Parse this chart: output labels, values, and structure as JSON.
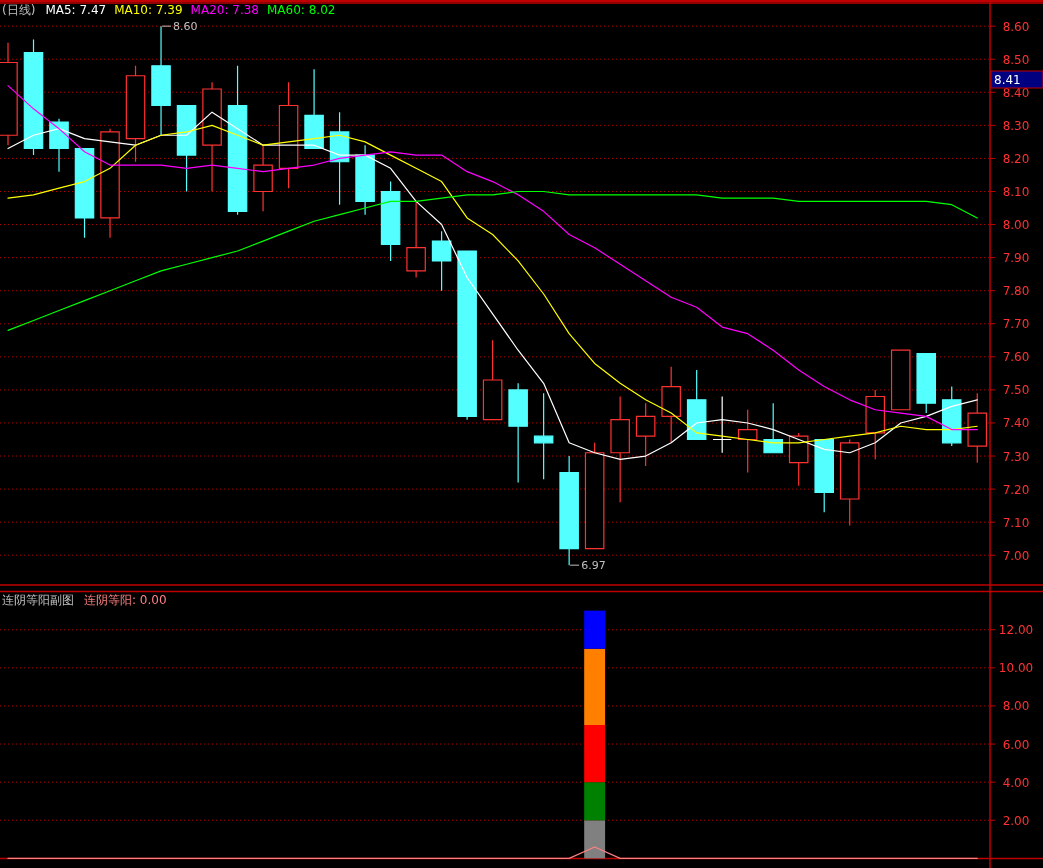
{
  "chart_data": [
    {
      "type": "candlestick",
      "title": "(日线)",
      "categories": [
        null,
        null,
        null,
        null,
        null,
        null,
        null,
        null,
        null,
        null,
        null,
        null,
        null,
        null,
        null,
        null,
        null,
        null,
        null,
        null,
        null,
        null,
        null,
        null,
        null,
        null,
        null,
        null,
        null,
        null,
        null,
        null,
        null,
        null,
        null,
        null,
        null,
        null,
        null
      ],
      "ohlc": [
        [
          8.27,
          8.55,
          8.24,
          8.49
        ],
        [
          8.52,
          8.56,
          8.21,
          8.23
        ],
        [
          8.31,
          8.32,
          8.16,
          8.23
        ],
        [
          8.23,
          8.23,
          7.96,
          8.02
        ],
        [
          8.02,
          8.29,
          7.96,
          8.28
        ],
        [
          8.26,
          8.48,
          8.19,
          8.45
        ],
        [
          8.48,
          8.6,
          8.27,
          8.36
        ],
        [
          8.36,
          8.36,
          8.1,
          8.21
        ],
        [
          8.24,
          8.43,
          8.1,
          8.41
        ],
        [
          8.36,
          8.48,
          8.03,
          8.04
        ],
        [
          8.1,
          8.24,
          8.04,
          8.18
        ],
        [
          8.17,
          8.43,
          8.11,
          8.36
        ],
        [
          8.33,
          8.47,
          8.23,
          8.23
        ],
        [
          8.28,
          8.34,
          8.06,
          8.19
        ],
        [
          8.21,
          8.24,
          8.03,
          8.07
        ],
        [
          8.1,
          8.13,
          7.89,
          7.94
        ],
        [
          7.86,
          8.07,
          7.84,
          7.93
        ],
        [
          7.95,
          7.98,
          7.8,
          7.89
        ],
        [
          7.92,
          7.92,
          7.41,
          7.42
        ],
        [
          7.41,
          7.65,
          7.41,
          7.53
        ],
        [
          7.5,
          7.52,
          7.22,
          7.39
        ],
        [
          7.36,
          7.49,
          7.23,
          7.34
        ],
        [
          7.25,
          7.3,
          6.97,
          7.02
        ],
        [
          7.02,
          7.34,
          7.02,
          7.31
        ],
        [
          7.31,
          7.48,
          7.16,
          7.41
        ],
        [
          7.36,
          7.46,
          7.27,
          7.42
        ],
        [
          7.42,
          7.57,
          7.34,
          7.51
        ],
        [
          7.47,
          7.56,
          7.35,
          7.35
        ],
        [
          7.35,
          7.48,
          7.31,
          7.35
        ],
        [
          7.35,
          7.44,
          7.25,
          7.38
        ],
        [
          7.35,
          7.46,
          7.31,
          7.31
        ],
        [
          7.28,
          7.37,
          7.21,
          7.36
        ],
        [
          7.35,
          7.35,
          7.13,
          7.19
        ],
        [
          7.17,
          7.35,
          7.09,
          7.34
        ],
        [
          7.37,
          7.5,
          7.29,
          7.48
        ],
        [
          7.44,
          7.62,
          7.44,
          7.62
        ],
        [
          7.61,
          7.61,
          7.43,
          7.46
        ],
        [
          7.47,
          7.51,
          7.33,
          7.34
        ],
        [
          7.33,
          7.49,
          7.28,
          7.43
        ]
      ],
      "colors": [
        "#ff3232",
        "#54ffff",
        "#54ffff",
        "#54ffff",
        "#ff3232",
        "#ff3232",
        "#54ffff",
        "#54ffff",
        "#ff3232",
        "#54ffff",
        "#ff3232",
        "#ff3232",
        "#54ffff",
        "#54ffff",
        "#54ffff",
        "#54ffff",
        "#ff3232",
        "#54ffff",
        "#54ffff",
        "#ff3232",
        "#54ffff",
        "#54ffff",
        "#54ffff",
        "#ff3232",
        "#ff3232",
        "#ff3232",
        "#ff3232",
        "#54ffff",
        "#ffffff",
        "#ff3232",
        "#54ffff",
        "#ff3232",
        "#54ffff",
        "#ff3232",
        "#ff3232",
        "#ff3232",
        "#54ffff",
        "#54ffff",
        "#ff3232"
      ],
      "series": [
        {
          "name": "MA5: 7.47",
          "type": "line",
          "color": "#ffffff",
          "values": [
            8.23,
            8.27,
            8.29,
            8.26,
            8.25,
            8.24,
            8.27,
            8.27,
            8.34,
            8.29,
            8.24,
            8.24,
            8.24,
            8.21,
            8.21,
            8.17,
            8.07,
            8.0,
            7.84,
            7.73,
            7.62,
            7.52,
            7.34,
            7.31,
            7.29,
            7.3,
            7.34,
            7.4,
            7.41,
            7.4,
            7.38,
            7.35,
            7.32,
            7.31,
            7.34,
            7.4,
            7.42,
            7.45,
            7.47
          ]
        },
        {
          "name": "MA10: 7.39",
          "type": "line",
          "color": "#ffff00",
          "values": [
            8.08,
            8.09,
            8.11,
            8.13,
            8.17,
            8.24,
            8.27,
            8.28,
            8.3,
            8.27,
            8.24,
            8.25,
            8.26,
            8.27,
            8.25,
            8.21,
            8.17,
            8.13,
            8.02,
            7.97,
            7.89,
            7.79,
            7.67,
            7.58,
            7.52,
            7.47,
            7.43,
            7.37,
            7.36,
            7.35,
            7.34,
            7.34,
            7.35,
            7.36,
            7.37,
            7.39,
            7.38,
            7.38,
            7.39
          ]
        },
        {
          "name": "MA20: 7.38",
          "type": "line",
          "color": "#ff00ff",
          "values": [
            8.42,
            8.35,
            8.29,
            8.22,
            8.18,
            8.18,
            8.18,
            8.17,
            8.18,
            8.17,
            8.16,
            8.17,
            8.18,
            8.2,
            8.21,
            8.22,
            8.21,
            8.21,
            8.16,
            8.13,
            8.09,
            8.04,
            7.97,
            7.93,
            7.88,
            7.83,
            7.78,
            7.75,
            7.69,
            7.67,
            7.62,
            7.56,
            7.51,
            7.47,
            7.44,
            7.43,
            7.42,
            7.38,
            7.38
          ]
        },
        {
          "name": "MA60: 8.02",
          "type": "line",
          "color": "#00ff00",
          "values": [
            7.68,
            7.71,
            7.74,
            7.77,
            7.8,
            7.83,
            7.86,
            7.88,
            7.9,
            7.92,
            7.95,
            7.98,
            8.01,
            8.03,
            8.05,
            8.07,
            8.07,
            8.08,
            8.09,
            8.09,
            8.1,
            8.1,
            8.09,
            8.09,
            8.09,
            8.09,
            8.09,
            8.09,
            8.08,
            8.08,
            8.08,
            8.07,
            8.07,
            8.07,
            8.07,
            8.07,
            8.07,
            8.06,
            8.02
          ]
        }
      ],
      "ylim": [
        6.91,
        8.67
      ],
      "yticks": [
        {
          "value": 7.0,
          "label": "7.00"
        },
        {
          "value": 7.1,
          "label": "7.10"
        },
        {
          "value": 7.2,
          "label": "7.20"
        },
        {
          "value": 7.3,
          "label": "7.30"
        },
        {
          "value": 7.4,
          "label": "7.40"
        },
        {
          "value": 7.5,
          "label": "7.50"
        },
        {
          "value": 7.6,
          "label": "7.60"
        },
        {
          "value": 7.7,
          "label": "7.70"
        },
        {
          "value": 7.8,
          "label": "7.80"
        },
        {
          "value": 7.9,
          "label": "7.90"
        },
        {
          "value": 8.0,
          "label": "8.00"
        },
        {
          "value": 8.1,
          "label": "8.10"
        },
        {
          "value": 8.2,
          "label": "8.20"
        },
        {
          "value": 8.3,
          "label": "8.30"
        },
        {
          "value": 8.4,
          "label": "8.40"
        },
        {
          "value": 8.5,
          "label": "8.50"
        },
        {
          "value": 8.6,
          "label": "8.60"
        }
      ],
      "grid": "y",
      "legend": "top left",
      "annotations": [
        "8.60",
        "6.97",
        "8.41"
      ]
    },
    {
      "type": "bar",
      "stacked": true,
      "title": "连阴等阳副图",
      "categories": [
        null,
        null,
        null,
        null,
        null,
        null,
        null,
        null,
        null,
        null,
        null,
        null,
        null,
        null,
        null,
        null,
        null,
        null,
        null,
        null,
        null,
        null,
        null,
        null,
        null,
        null,
        null,
        null,
        null,
        null,
        null,
        null,
        null,
        null,
        null,
        null,
        null,
        null,
        null
      ],
      "series": [
        {
          "color": "#808080",
          "values": [
            null,
            null,
            null,
            null,
            null,
            null,
            null,
            null,
            null,
            null,
            null,
            null,
            null,
            null,
            null,
            null,
            null,
            null,
            null,
            null,
            null,
            null,
            null,
            2,
            null,
            null,
            null,
            null,
            null,
            null,
            null,
            null,
            null,
            null,
            null,
            null,
            null,
            null,
            null
          ]
        },
        {
          "color": "#008000",
          "values": [
            null,
            null,
            null,
            null,
            null,
            null,
            null,
            null,
            null,
            null,
            null,
            null,
            null,
            null,
            null,
            null,
            null,
            null,
            null,
            null,
            null,
            null,
            null,
            2,
            null,
            null,
            null,
            null,
            null,
            null,
            null,
            null,
            null,
            null,
            null,
            null,
            null,
            null,
            null
          ]
        },
        {
          "color": "#ff0000",
          "values": [
            null,
            null,
            null,
            null,
            null,
            null,
            null,
            null,
            null,
            null,
            null,
            null,
            null,
            null,
            null,
            null,
            null,
            null,
            null,
            null,
            null,
            null,
            null,
            3,
            null,
            null,
            null,
            null,
            null,
            null,
            null,
            null,
            null,
            null,
            null,
            null,
            null,
            null,
            null
          ]
        },
        {
          "color": "#ff8000",
          "values": [
            null,
            null,
            null,
            null,
            null,
            null,
            null,
            null,
            null,
            null,
            null,
            null,
            null,
            null,
            null,
            null,
            null,
            null,
            null,
            null,
            null,
            null,
            null,
            4,
            null,
            null,
            null,
            null,
            null,
            null,
            null,
            null,
            null,
            null,
            null,
            null,
            null,
            null,
            null
          ]
        },
        {
          "color": "#0000ff",
          "values": [
            null,
            null,
            null,
            null,
            null,
            null,
            null,
            null,
            null,
            null,
            null,
            null,
            null,
            null,
            null,
            null,
            null,
            null,
            null,
            null,
            null,
            null,
            null,
            2,
            null,
            null,
            null,
            null,
            null,
            null,
            null,
            null,
            null,
            null,
            null,
            null,
            null,
            null,
            null
          ]
        },
        {
          "name": "连阴等阳: 0.00",
          "type": "line",
          "color": "#ff8080",
          "values": [
            0,
            0,
            0,
            0,
            0,
            0,
            0,
            0,
            0,
            0,
            0,
            0,
            0,
            0,
            0,
            0,
            0,
            0,
            0,
            0,
            0,
            0,
            0,
            0.6,
            0,
            0,
            0,
            0,
            0,
            0,
            0,
            0,
            0,
            0,
            0,
            0,
            0,
            0,
            0
          ]
        }
      ],
      "ylim": [
        0,
        14
      ],
      "yticks": [
        {
          "value": 2,
          "label": "2.00"
        },
        {
          "value": 4,
          "label": "4.00"
        },
        {
          "value": 6,
          "label": "6.00"
        },
        {
          "value": 8,
          "label": "8.00"
        },
        {
          "value": 10,
          "label": "10.00"
        },
        {
          "value": 12,
          "label": "12.00"
        }
      ],
      "grid": "y",
      "legend": "top left"
    }
  ]
}
